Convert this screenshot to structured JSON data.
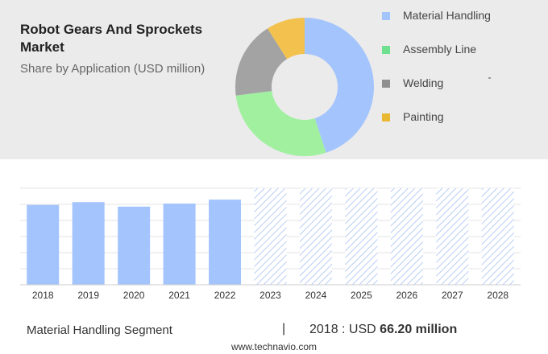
{
  "header": {
    "title": "Robot Gears And Sprockets Market",
    "subtitle": "Share by Application (USD million)"
  },
  "chart_data": [
    {
      "type": "pie",
      "style": "donut",
      "slices": [
        {
          "label": "Material Handling",
          "value": 45,
          "color": "#a4c4fd"
        },
        {
          "label": "Assembly Line",
          "value": 28,
          "color": "#a0f0a0"
        },
        {
          "label": "Welding",
          "value": 18,
          "color": "#a3a3a3"
        },
        {
          "label": "Painting",
          "value": 9,
          "color": "#f2c14e"
        }
      ],
      "legend_position": "right"
    },
    {
      "type": "bar",
      "categories": [
        "2018",
        "2019",
        "2020",
        "2021",
        "2022",
        "2023",
        "2024",
        "2025",
        "2026",
        "2027",
        "2028"
      ],
      "values": [
        66.2,
        68.5,
        64.8,
        67.3,
        70.6,
        null,
        null,
        null,
        null,
        null,
        null
      ],
      "forecast_categories": [
        "2023",
        "2024",
        "2025",
        "2026",
        "2027",
        "2028"
      ],
      "ylim": [
        0,
        80
      ],
      "grid": true,
      "bar_color": "#a4c4fd",
      "forecast_color": "#b9cdf5"
    }
  ],
  "footer": {
    "segment": "Material Handling Segment",
    "divider": "|",
    "year_label": "2018 : USD",
    "value": "66.20 million",
    "source": "www.technavio.com"
  }
}
